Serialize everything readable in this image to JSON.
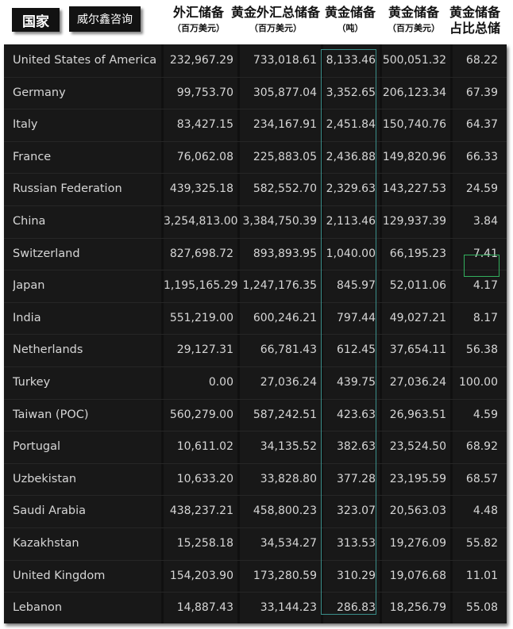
{
  "header": {
    "country_label": "国家",
    "brand_label": "威尔鑫咨询",
    "columns": [
      {
        "line1": "外汇储备",
        "line2": "（百万美元）"
      },
      {
        "line1": "黄金外汇总储备",
        "line2": "（百万美元）"
      },
      {
        "line1": "黄金储备",
        "line2": "（吨）"
      },
      {
        "line1": "黄金储备",
        "line2": "（百万美元）"
      },
      {
        "line1": "黄金储备",
        "line2": "占比总储"
      }
    ]
  },
  "rows": [
    {
      "country": "United States of America",
      "fx": "232,967.29",
      "total": "733,018.61",
      "tonnes": "8,133.46",
      "gold_usd": "500,051.32",
      "share": "68.22"
    },
    {
      "country": "Germany",
      "fx": "99,753.70",
      "total": "305,877.04",
      "tonnes": "3,352.65",
      "gold_usd": "206,123.34",
      "share": "67.39"
    },
    {
      "country": "Italy",
      "fx": "83,427.15",
      "total": "234,167.91",
      "tonnes": "2,451.84",
      "gold_usd": "150,740.76",
      "share": "64.37"
    },
    {
      "country": "France",
      "fx": "76,062.08",
      "total": "225,883.05",
      "tonnes": "2,436.88",
      "gold_usd": "149,820.96",
      "share": "66.33"
    },
    {
      "country": "Russian Federation",
      "fx": "439,325.18",
      "total": "582,552.70",
      "tonnes": "2,329.63",
      "gold_usd": "143,227.53",
      "share": "24.59"
    },
    {
      "country": "China",
      "fx": "3,254,813.00",
      "total": "3,384,750.39",
      "tonnes": "2,113.46",
      "gold_usd": "129,937.39",
      "share": "3.84"
    },
    {
      "country": "Switzerland",
      "fx": "827,698.72",
      "total": "893,893.95",
      "tonnes": "1,040.00",
      "gold_usd": "66,195.23",
      "share": "7.41"
    },
    {
      "country": "Japan",
      "fx": "1,195,165.29",
      "total": "1,247,176.35",
      "tonnes": "845.97",
      "gold_usd": "52,011.06",
      "share": "4.17"
    },
    {
      "country": "India",
      "fx": "551,219.00",
      "total": "600,246.21",
      "tonnes": "797.44",
      "gold_usd": "49,027.21",
      "share": "8.17"
    },
    {
      "country": "Netherlands",
      "fx": "29,127.31",
      "total": "66,781.43",
      "tonnes": "612.45",
      "gold_usd": "37,654.11",
      "share": "56.38"
    },
    {
      "country": "Turkey",
      "fx": "0.00",
      "total": "27,036.24",
      "tonnes": "439.75",
      "gold_usd": "27,036.24",
      "share": "100.00"
    },
    {
      "country": "Taiwan (POC)",
      "fx": "560,279.00",
      "total": "587,242.51",
      "tonnes": "423.63",
      "gold_usd": "26,963.51",
      "share": "4.59"
    },
    {
      "country": "Portugal",
      "fx": "10,611.02",
      "total": "34,135.52",
      "tonnes": "382.63",
      "gold_usd": "23,524.50",
      "share": "68.92"
    },
    {
      "country": "Uzbekistan",
      "fx": "10,633.20",
      "total": "33,828.80",
      "tonnes": "377.28",
      "gold_usd": "23,195.59",
      "share": "68.57"
    },
    {
      "country": "Saudi Arabia",
      "fx": "438,237.21",
      "total": "458,800.23",
      "tonnes": "323.07",
      "gold_usd": "20,563.03",
      "share": "4.48"
    },
    {
      "country": "Kazakhstan",
      "fx": "15,258.18",
      "total": "34,534.27",
      "tonnes": "313.53",
      "gold_usd": "19,276.09",
      "share": "55.82"
    },
    {
      "country": "United Kingdom",
      "fx": "154,203.90",
      "total": "173,280.59",
      "tonnes": "310.29",
      "gold_usd": "19,076.68",
      "share": "11.01"
    },
    {
      "country": "Lebanon",
      "fx": "14,887.43",
      "total": "33,144.23",
      "tonnes": "286.83",
      "gold_usd": "18,256.79",
      "share": "55.08"
    }
  ],
  "colors": {
    "table_background": "#181818",
    "text": "#d6d6d6",
    "gold_column_highlight": "#3a8e8a",
    "china_share_highlight": "#32b05e"
  }
}
